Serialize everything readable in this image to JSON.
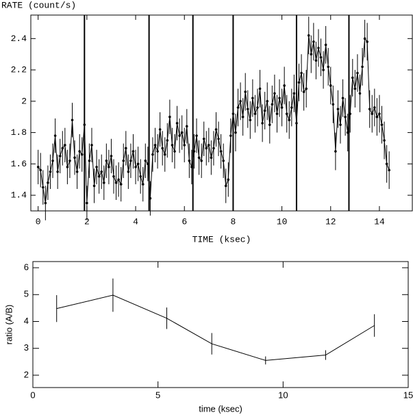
{
  "chart_data": [
    {
      "type": "line",
      "y_label": "RATE (count/s)",
      "x_label": "TIME (ksec)",
      "xlim": [
        -0.3,
        15.35
      ],
      "ylim": [
        1.3,
        2.55
      ],
      "xticks": [
        0,
        2,
        4,
        6,
        8,
        10,
        12,
        14
      ],
      "yticks": [
        1.4,
        1.6,
        1.8,
        2,
        2.2,
        2.4
      ],
      "vlines": [
        1.9,
        4.55,
        6.35,
        8.0,
        10.6,
        12.75
      ],
      "color": "#000000",
      "font": "mono",
      "x": [
        0.0,
        0.1,
        0.2,
        0.3,
        0.4,
        0.5,
        0.6,
        0.7,
        0.8,
        0.9,
        1.0,
        1.1,
        1.2,
        1.3,
        1.4,
        1.5,
        1.6,
        1.7,
        1.8,
        1.9,
        2.0,
        2.1,
        2.2,
        2.3,
        2.4,
        2.5,
        2.6,
        2.7,
        2.8,
        2.9,
        3.0,
        3.1,
        3.2,
        3.3,
        3.4,
        3.5,
        3.6,
        3.7,
        3.8,
        3.9,
        4.0,
        4.1,
        4.2,
        4.3,
        4.4,
        4.5,
        4.6,
        4.7,
        4.8,
        4.9,
        5.0,
        5.1,
        5.2,
        5.3,
        5.4,
        5.5,
        5.6,
        5.7,
        5.8,
        5.9,
        6.0,
        6.1,
        6.2,
        6.3,
        6.4,
        6.5,
        6.6,
        6.7,
        6.8,
        6.9,
        7.0,
        7.1,
        7.2,
        7.3,
        7.4,
        7.5,
        7.6,
        7.7,
        7.8,
        7.9,
        8.0,
        8.1,
        8.2,
        8.3,
        8.4,
        8.5,
        8.6,
        8.7,
        8.8,
        8.9,
        9.0,
        9.1,
        9.2,
        9.3,
        9.4,
        9.5,
        9.6,
        9.7,
        9.8,
        9.9,
        10.0,
        10.1,
        10.2,
        10.3,
        10.4,
        10.5,
        10.6,
        10.7,
        10.8,
        10.9,
        11.0,
        11.1,
        11.2,
        11.3,
        11.4,
        11.5,
        11.6,
        11.7,
        11.8,
        11.9,
        12.0,
        12.1,
        12.2,
        12.3,
        12.4,
        12.5,
        12.6,
        12.7,
        12.8,
        12.9,
        13.0,
        13.1,
        13.2,
        13.3,
        13.4,
        13.5,
        13.6,
        13.7,
        13.8,
        13.9,
        14.0,
        14.1,
        14.2,
        14.3,
        14.4
      ],
      "values": [
        1.58,
        1.56,
        1.45,
        1.35,
        1.48,
        1.55,
        1.62,
        1.78,
        1.55,
        1.65,
        1.7,
        1.72,
        1.58,
        1.62,
        1.88,
        1.64,
        1.55,
        1.68,
        1.66,
        1.85,
        1.35,
        1.62,
        1.72,
        1.46,
        1.58,
        1.52,
        1.55,
        1.48,
        1.62,
        1.58,
        1.65,
        1.52,
        1.48,
        1.5,
        1.47,
        1.62,
        1.7,
        1.55,
        1.62,
        1.68,
        1.58,
        1.6,
        1.52,
        1.47,
        1.62,
        1.6,
        1.38,
        1.66,
        1.72,
        1.68,
        1.82,
        1.7,
        1.66,
        1.75,
        1.9,
        1.72,
        1.68,
        1.86,
        1.78,
        1.8,
        1.72,
        1.84,
        1.62,
        1.58,
        1.68,
        1.78,
        1.64,
        1.62,
        1.76,
        1.7,
        1.72,
        1.64,
        1.7,
        1.82,
        1.76,
        1.68,
        1.62,
        1.46,
        1.5,
        1.78,
        1.92,
        1.8,
        1.96,
        2.0,
        1.9,
        2.06,
        1.95,
        1.88,
        2.02,
        1.92,
        1.96,
        2.08,
        1.86,
        1.94,
        2.0,
        1.85,
        1.98,
        2.05,
        1.92,
        2.02,
        1.96,
        2.1,
        1.92,
        1.88,
        1.96,
        2.05,
        1.86,
        2.12,
        2.18,
        2.06,
        2.08,
        2.42,
        2.3,
        2.38,
        2.26,
        2.34,
        2.28,
        2.2,
        2.36,
        2.22,
        2.1,
        1.98,
        1.68,
        1.95,
        1.85,
        2.02,
        1.9,
        1.8,
        1.92,
        2.15,
        2.08,
        2.18,
        2.05,
        2.22,
        2.4,
        2.38,
        1.95,
        1.92,
        1.96,
        1.9,
        1.92,
        1.85,
        1.75,
        1.6,
        1.56
      ],
      "errors": [
        0.11,
        0.11,
        0.11,
        0.11,
        0.11,
        0.11,
        0.11,
        0.11,
        0.11,
        0.11,
        0.11,
        0.11,
        0.11,
        0.11,
        0.11,
        0.11,
        0.11,
        0.11,
        0.11,
        0.11,
        0.11,
        0.11,
        0.11,
        0.11,
        0.11,
        0.11,
        0.11,
        0.11,
        0.11,
        0.11,
        0.11,
        0.11,
        0.11,
        0.11,
        0.11,
        0.11,
        0.11,
        0.11,
        0.11,
        0.11,
        0.11,
        0.11,
        0.11,
        0.11,
        0.11,
        0.11,
        0.11,
        0.11,
        0.11,
        0.11,
        0.11,
        0.11,
        0.11,
        0.11,
        0.11,
        0.11,
        0.11,
        0.11,
        0.11,
        0.11,
        0.11,
        0.11,
        0.11,
        0.11,
        0.11,
        0.11,
        0.11,
        0.11,
        0.11,
        0.11,
        0.11,
        0.11,
        0.11,
        0.11,
        0.11,
        0.11,
        0.11,
        0.11,
        0.11,
        0.11,
        0.12,
        0.12,
        0.12,
        0.12,
        0.12,
        0.12,
        0.12,
        0.12,
        0.12,
        0.12,
        0.12,
        0.12,
        0.12,
        0.12,
        0.12,
        0.12,
        0.12,
        0.12,
        0.12,
        0.12,
        0.12,
        0.12,
        0.12,
        0.12,
        0.12,
        0.12,
        0.12,
        0.12,
        0.12,
        0.12,
        0.12,
        0.12,
        0.12,
        0.12,
        0.12,
        0.12,
        0.12,
        0.12,
        0.12,
        0.12,
        0.12,
        0.12,
        0.12,
        0.12,
        0.12,
        0.12,
        0.12,
        0.12,
        0.12,
        0.12,
        0.12,
        0.12,
        0.12,
        0.12,
        0.12,
        0.12,
        0.12,
        0.12,
        0.12,
        0.12,
        0.12,
        0.12,
        0.12,
        0.12,
        0.12
      ]
    },
    {
      "type": "line",
      "y_label": "ratio (A/B)",
      "x_label": "time (ksec)",
      "xlim": [
        0,
        15
      ],
      "ylim": [
        1.54,
        6.23
      ],
      "xticks": [
        0,
        5,
        10,
        15
      ],
      "yticks": [
        2,
        3,
        4,
        5,
        6
      ],
      "color": "#000000",
      "font": "sans",
      "x": [
        0.95,
        3.2,
        5.35,
        7.15,
        9.3,
        11.7,
        13.65
      ],
      "values": [
        4.48,
        4.98,
        4.12,
        3.17,
        2.55,
        2.75,
        3.85
      ],
      "errors": [
        0.5,
        0.62,
        0.4,
        0.4,
        0.15,
        0.18,
        0.42
      ]
    }
  ]
}
